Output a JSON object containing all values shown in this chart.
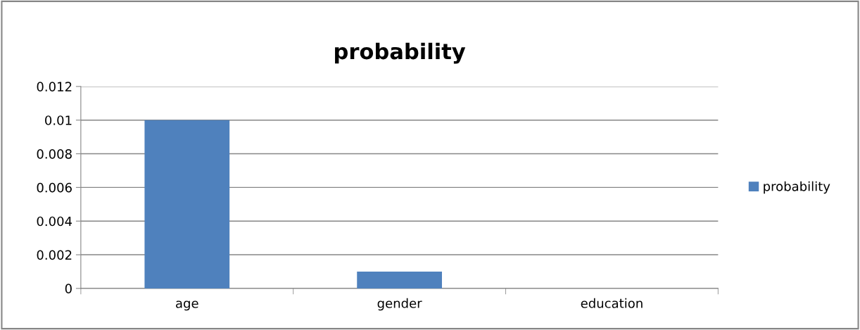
{
  "chart_data": {
    "type": "bar",
    "title": "probability",
    "categories": [
      "age",
      "gender",
      "education"
    ],
    "series": [
      {
        "name": "probability",
        "color": "#4f81bd",
        "values": [
          0.01,
          0.001,
          0
        ]
      }
    ],
    "ylim": [
      0,
      0.012
    ],
    "yticks": [
      0,
      0.002,
      0.004,
      0.006,
      0.008,
      0.01,
      0.012
    ],
    "grid": "y",
    "legend": "right"
  }
}
